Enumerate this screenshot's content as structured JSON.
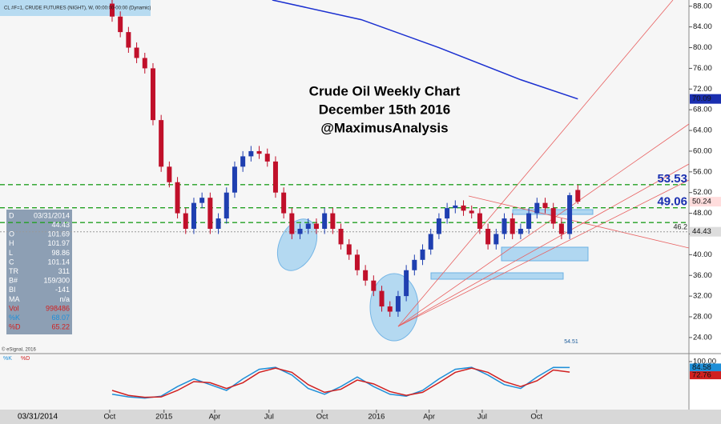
{
  "chart_data": {
    "type": "candlestick",
    "title": [
      "Crude Oil Weekly Chart",
      "December 15th 2016",
      "@MaximusAnalysis"
    ],
    "symbol_label": "CL #F=1, CRUDE FUTURES (NIGHT), W, 00:00:00-00:00 (Dynamic)",
    "copyright": "© eSignal, 2016",
    "start_date": "03/31/2014",
    "annotation": "54.51",
    "up_color": "#1f3fb0",
    "down_color": "#c0102a",
    "x": [
      0,
      2,
      4,
      6,
      8,
      10,
      12,
      14,
      16,
      18,
      20,
      22,
      24,
      26,
      28,
      30,
      32,
      34,
      36,
      38,
      40,
      42,
      44,
      46,
      48,
      50,
      52,
      54,
      56,
      58,
      60,
      62,
      64,
      66,
      68,
      70,
      72,
      74,
      76,
      78,
      80,
      82,
      84,
      86,
      88,
      90,
      92,
      94,
      96,
      98,
      100,
      102,
      104,
      106,
      108,
      110,
      112,
      114
    ],
    "open": [
      88.5,
      86,
      83,
      80,
      78,
      76,
      66,
      57,
      54,
      48,
      45,
      50,
      51,
      45,
      47,
      52,
      57,
      59,
      60,
      59.5,
      58,
      52,
      48,
      44,
      45,
      46,
      45,
      48,
      45,
      42,
      40,
      37,
      35,
      33,
      30,
      29,
      32,
      37,
      39,
      41,
      44,
      47,
      49,
      49.5,
      48.5,
      48,
      45,
      42,
      44,
      47,
      44,
      45,
      48,
      50,
      49,
      46,
      44,
      52.5
    ],
    "high": [
      89.5,
      87,
      84,
      81,
      79,
      77,
      67,
      58,
      55,
      49,
      51,
      52,
      52,
      48,
      53,
      58,
      60,
      61,
      61,
      60.5,
      59,
      53,
      49,
      46,
      47,
      47,
      49,
      49,
      46,
      43,
      41,
      38,
      36,
      34,
      31,
      33,
      38,
      40,
      42,
      45,
      48,
      50,
      50.5,
      50.5,
      49.5,
      49,
      46,
      45,
      48,
      48,
      46,
      49,
      51,
      51,
      50,
      47,
      52,
      53.5
    ],
    "low": [
      85,
      82,
      79,
      77,
      75,
      65,
      56,
      53,
      47,
      44,
      44,
      49,
      44,
      44,
      46,
      51,
      56,
      58,
      58.5,
      57,
      51,
      47,
      43,
      43,
      44,
      44,
      44,
      44,
      41,
      39,
      36,
      34,
      32,
      29,
      28,
      28,
      31,
      36,
      38,
      40,
      43,
      46,
      48,
      47.5,
      47,
      44,
      41,
      41,
      43,
      43,
      43,
      44,
      47,
      48,
      45,
      43,
      43,
      49.8
    ],
    "close": [
      86,
      83,
      80,
      78,
      76,
      66,
      57,
      54,
      48,
      45,
      50,
      51,
      45,
      47,
      52,
      57,
      59,
      60,
      59.5,
      58,
      52,
      48,
      44,
      45,
      46,
      45,
      48,
      45,
      42,
      40,
      37,
      35,
      33,
      30,
      29,
      32,
      37,
      39,
      41,
      44,
      47,
      49,
      49.5,
      48.5,
      48,
      45,
      42,
      44,
      47,
      44,
      45,
      48,
      50,
      49,
      46,
      44,
      51.5,
      50.24
    ],
    "moving_average": {
      "color": "#1a2fd0",
      "x": [
        39.2,
        61,
        80,
        100,
        114
      ],
      "values": [
        89.2,
        85.4,
        80,
        73.8,
        70.09
      ]
    },
    "levels": [
      53.53,
      49.06,
      46.2
    ],
    "level_color": "#22a022",
    "reference_line": 44.43,
    "xlim": [
      -27.45,
      141.2
    ],
    "ylim": [
      21.2,
      89.2
    ],
    "xticks": [
      {
        "value": -0.6,
        "label": "Oct"
      },
      {
        "value": 12.7,
        "label": "2015"
      },
      {
        "value": 25.1,
        "label": "Apr"
      },
      {
        "value": 38.4,
        "label": "Jul"
      },
      {
        "value": 51.4,
        "label": "Oct"
      },
      {
        "value": 64.7,
        "label": "2016"
      },
      {
        "value": 77.6,
        "label": "Apr"
      },
      {
        "value": 90.6,
        "label": "Jul"
      },
      {
        "value": 103.9,
        "label": "Oct"
      }
    ],
    "yticks": [
      {
        "value": 24,
        "label": "24.00"
      },
      {
        "value": 28,
        "label": "28.00"
      },
      {
        "value": 32,
        "label": "32.00"
      },
      {
        "value": 36,
        "label": "36.00"
      },
      {
        "value": 40,
        "label": "40.00"
      },
      {
        "value": 44,
        "label": "44.00"
      },
      {
        "value": 48,
        "label": "48.00"
      },
      {
        "value": 52,
        "label": "52.00"
      },
      {
        "value": 56,
        "label": "56.00"
      },
      {
        "value": 60,
        "label": "60.00"
      },
      {
        "value": 64,
        "label": "64.00"
      },
      {
        "value": 68,
        "label": "68.00"
      },
      {
        "value": 72,
        "label": "72.00"
      },
      {
        "value": 76,
        "label": "76.00"
      },
      {
        "value": 80,
        "label": "80.00"
      },
      {
        "value": 84,
        "label": "84.00"
      },
      {
        "value": 88,
        "label": "88.00"
      }
    ],
    "stochastic": {
      "x": [
        0,
        4,
        8,
        12,
        16,
        20,
        24,
        28,
        32,
        36,
        40,
        44,
        48,
        52,
        56,
        60,
        64,
        68,
        72,
        76,
        80,
        84,
        88,
        92,
        96,
        100,
        104,
        108,
        112
      ],
      "series": [
        {
          "name": "%K",
          "color": "#1f8fd8",
          "values": [
            15,
            8,
            5,
            10,
            35,
            55,
            40,
            25,
            55,
            80,
            85,
            65,
            30,
            15,
            35,
            60,
            35,
            15,
            10,
            25,
            55,
            80,
            85,
            65,
            40,
            30,
            60,
            85,
            84.58
          ]
        },
        {
          "name": "%D",
          "color": "#d02020",
          "values": [
            25,
            12,
            7,
            8,
            25,
            48,
            45,
            30,
            45,
            72,
            83,
            72,
            40,
            20,
            28,
            52,
            42,
            22,
            12,
            20,
            45,
            72,
            83,
            72,
            48,
            35,
            50,
            78,
            72.76
          ]
        }
      ],
      "ylim": [
        0,
        100
      ],
      "yticks": [
        {
          "value": 100,
          "label": "100.00"
        }
      ]
    },
    "info_panel": [
      [
        "D",
        "03/31/2014"
      ],
      [
        "",
        "44.43"
      ],
      [
        "O",
        "101.69"
      ],
      [
        "H",
        "101.97"
      ],
      [
        "L",
        "98.86"
      ],
      [
        "C",
        "101.14"
      ],
      [
        "TR",
        "311"
      ],
      [
        "B#",
        "159/300"
      ],
      [
        "BI",
        "-141"
      ],
      [
        "MA",
        "n/a"
      ],
      [
        "Vol",
        "998486"
      ],
      [
        "%K",
        "68.07"
      ],
      [
        "%D",
        "65.22"
      ]
    ]
  }
}
